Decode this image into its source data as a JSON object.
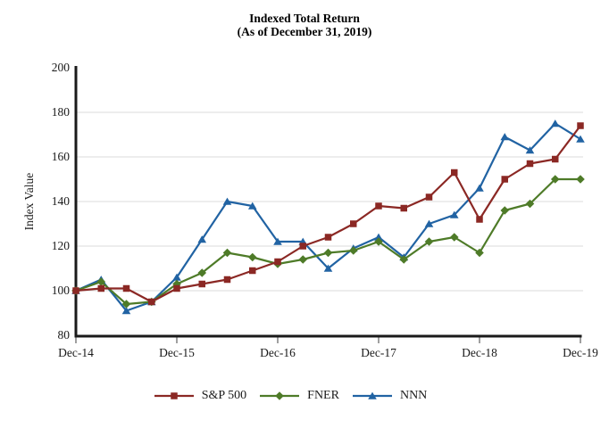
{
  "title": {
    "line1": "Indexed Total Return",
    "line2": "(As of December 31, 2019)"
  },
  "chart_data": {
    "type": "line",
    "title": "Indexed Total Return (As of December 31, 2019)",
    "xlabel": "",
    "ylabel": "Index Value",
    "ylim": [
      80,
      200
    ],
    "yticks": [
      80,
      100,
      120,
      140,
      160,
      180,
      200
    ],
    "x": [
      "Dec-14",
      "Mar-15",
      "Jun-15",
      "Sep-15",
      "Dec-15",
      "Mar-16",
      "Jun-16",
      "Sep-16",
      "Dec-16",
      "Mar-17",
      "Jun-17",
      "Sep-17",
      "Dec-17",
      "Mar-18",
      "Jun-18",
      "Sep-18",
      "Dec-18",
      "Mar-19",
      "Jun-19",
      "Sep-19",
      "Dec-19"
    ],
    "x_axis_tick_labels": [
      "Dec-14",
      "Dec-15",
      "Dec-16",
      "Dec-17",
      "Dec-18",
      "Dec-19"
    ],
    "grid": true,
    "gridline_color": "#DBDBDB",
    "axis_color": "#1a1a1a",
    "legend_position": "bottom",
    "series": [
      {
        "name": "S&P 500",
        "color": "#8B2824",
        "marker": "square",
        "values": [
          100,
          101,
          101,
          95,
          101,
          103,
          105,
          109,
          113,
          120,
          124,
          130,
          138,
          137,
          142,
          153,
          132,
          150,
          157,
          159,
          174
        ]
      },
      {
        "name": "FNER",
        "color": "#4E7B28",
        "marker": "diamond",
        "values": [
          100,
          104,
          94,
          95,
          103,
          108,
          117,
          115,
          112,
          114,
          117,
          118,
          122,
          114,
          122,
          124,
          117,
          136,
          139,
          150,
          150
        ]
      },
      {
        "name": "NNN",
        "color": "#2163A3",
        "marker": "triangle",
        "values": [
          100,
          105,
          91,
          95,
          106,
          123,
          140,
          138,
          122,
          122,
          110,
          119,
          124,
          115,
          130,
          134,
          146,
          169,
          163,
          175,
          168
        ]
      }
    ]
  }
}
